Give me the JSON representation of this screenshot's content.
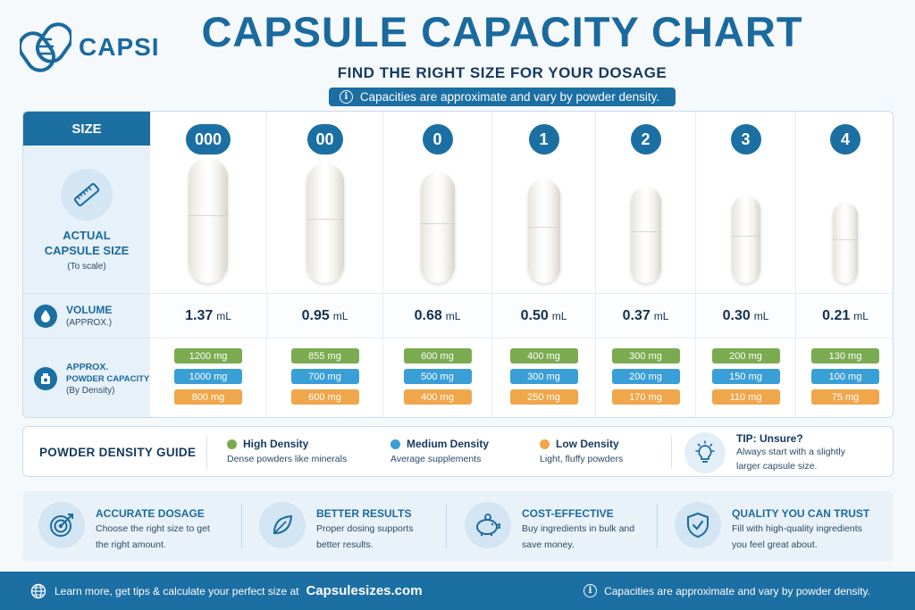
{
  "brand": {
    "name": "CAPSI"
  },
  "header": {
    "title": "CAPSULE CAPACITY CHART",
    "subtitle": "FIND THE RIGHT SIZE FOR YOUR DOSAGE",
    "note": "Capacities are approximate and vary by powder density."
  },
  "row_labels": {
    "size": "SIZE",
    "actual_title": "ACTUAL\nCAPSULE SIZE",
    "actual_sub": "(To scale)",
    "volume_title": "VOLUME",
    "volume_sub": "(APPROX.)",
    "capacity_title_1": "APPROX.",
    "capacity_title_2": "POWDER CAPACITY",
    "capacity_sub": "(By Density)"
  },
  "volume_unit": "mL",
  "sizes": [
    {
      "label": "000",
      "volume": "1.37",
      "high": "1200 mg",
      "medium": "1000 mg",
      "low": "800 mg"
    },
    {
      "label": "00",
      "volume": "0.95",
      "high": "855 mg",
      "medium": "700 mg",
      "low": "600 mg"
    },
    {
      "label": "0",
      "volume": "0.68",
      "high": "600 mg",
      "medium": "500 mg",
      "low": "400 mg"
    },
    {
      "label": "1",
      "volume": "0.50",
      "high": "400 mg",
      "medium": "300 mg",
      "low": "250 mg"
    },
    {
      "label": "2",
      "volume": "0.37",
      "high": "300 mg",
      "medium": "200 mg",
      "low": "170 mg"
    },
    {
      "label": "3",
      "volume": "0.30",
      "high": "200 mg",
      "medium": "150 mg",
      "low": "110 mg"
    },
    {
      "label": "4",
      "volume": "0.21",
      "high": "130 mg",
      "medium": "100 mg",
      "low": "75 mg"
    }
  ],
  "density_guide": {
    "title": "POWDER DENSITY GUIDE",
    "items": [
      {
        "name": "High Density",
        "desc": "Dense powders like minerals",
        "color": "#7aab51"
      },
      {
        "name": "Medium Density",
        "desc": "Average supplements",
        "color": "#3a9fd6"
      },
      {
        "name": "Low Density",
        "desc": "Light, fluffy powders",
        "color": "#f0a64a"
      }
    ],
    "tip_title": "TIP: Unsure?",
    "tip_text_1": "Always start with a slightly",
    "tip_text_2": "larger capsule size."
  },
  "benefits": [
    {
      "title": "ACCURATE DOSAGE",
      "line1": "Choose the right size to get",
      "line2": "the right amount.",
      "icon": "target-icon"
    },
    {
      "title": "BETTER RESULTS",
      "line1": "Proper dosing supports",
      "line2": "better results.",
      "icon": "leaf-icon"
    },
    {
      "title": "COST-EFFECTIVE",
      "line1": "Buy ingredients in bulk and",
      "line2": "save money.",
      "icon": "piggy-bank-icon"
    },
    {
      "title": "QUALITY YOU CAN TRUST",
      "line1": "Fill with high-quality ingredients",
      "line2": "you feel great about.",
      "icon": "shield-check-icon"
    }
  ],
  "footer": {
    "text": "Learn more, get tips & calculate your perfect size at",
    "site": "Capsulesizes.com",
    "note": "Capacities are approximate and vary by powder density."
  },
  "colors": {
    "primary": "#1b6fa2",
    "high": "#7aab51",
    "medium": "#3a9fd6",
    "low": "#f0a64a"
  }
}
